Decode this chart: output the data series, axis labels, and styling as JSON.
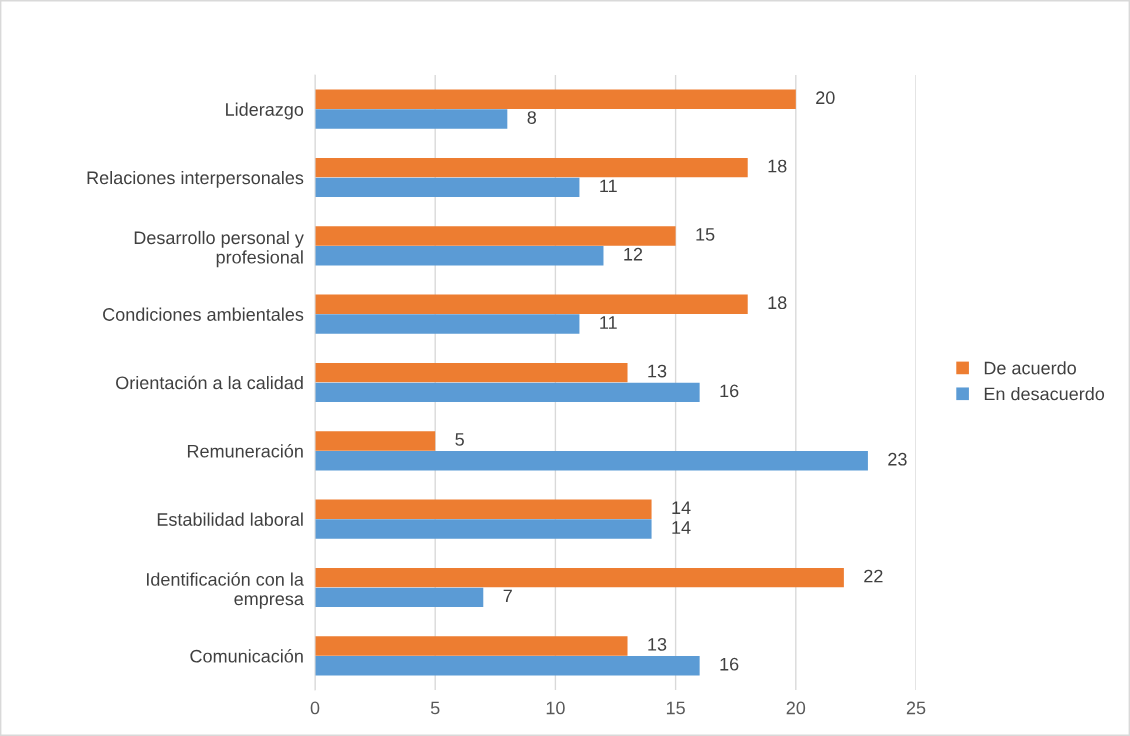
{
  "chart_data": {
    "type": "bar",
    "orientation": "horizontal",
    "categories": [
      "Liderazgo",
      "Relaciones interpersonales",
      "Desarrollo personal y\nprofesional",
      "Condiciones ambientales",
      "Orientación a la calidad",
      "Remuneración",
      "Estabilidad laboral",
      "Identificación con la\nempresa",
      "Comunicación"
    ],
    "series": [
      {
        "name": "De acuerdo",
        "color": "#ed7d31",
        "values": [
          20,
          18,
          15,
          18,
          13,
          5,
          14,
          22,
          13
        ]
      },
      {
        "name": "En desacuerdo",
        "color": "#5b9bd5",
        "values": [
          8,
          11,
          12,
          11,
          16,
          23,
          14,
          7,
          16
        ]
      }
    ],
    "xlim": [
      0,
      25
    ],
    "xticks": [
      0,
      5,
      10,
      15,
      20,
      25
    ],
    "grid": "x",
    "legend": "right",
    "data_labels": true
  }
}
